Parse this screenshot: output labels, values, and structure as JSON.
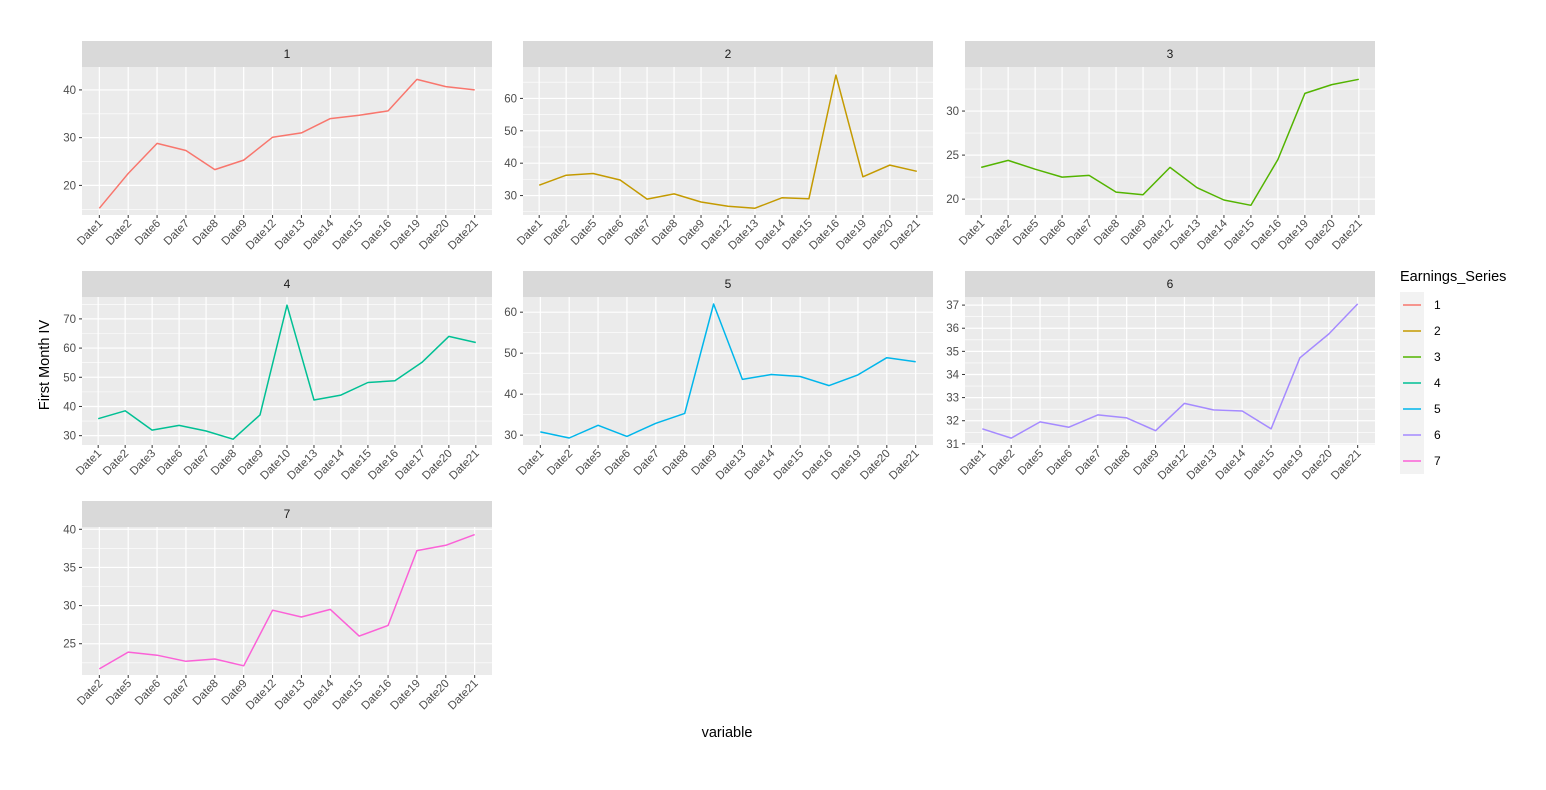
{
  "colors": {
    "panel_background": "#ebebeb",
    "strip_background": "#d9d9d9",
    "grid_line": "#ffffff",
    "tick_text": "#4d4d4d",
    "series": {
      "1": "#F8766D",
      "2": "#C49A00",
      "3": "#53B400",
      "4": "#00C094",
      "5": "#00B6EB",
      "6": "#A58AFF",
      "7": "#FB61D7"
    }
  },
  "chart_data": {
    "type": "line",
    "xlabel": "variable",
    "ylabel": "First Month IV",
    "legend": {
      "title": "Earnings_Series",
      "placement": "right",
      "entries": [
        "1",
        "2",
        "3",
        "4",
        "5",
        "6",
        "7"
      ]
    },
    "grid": true,
    "panels": [
      {
        "strip": "1",
        "series": "1",
        "x": [
          "Date1",
          "Date2",
          "Date6",
          "Date7",
          "Date8",
          "Date9",
          "Date12",
          "Date13",
          "Date14",
          "Date15",
          "Date16",
          "Date19",
          "Date20",
          "Date21"
        ],
        "y": [
          15.2,
          22.5,
          28.8,
          27.3,
          23.3,
          25.3,
          30.1,
          31.0,
          34.0,
          34.7,
          35.6,
          42.2,
          40.7,
          40.0
        ],
        "ylim": [
          13.8,
          44.8
        ],
        "yticks": [
          20,
          30,
          40
        ]
      },
      {
        "strip": "2",
        "series": "2",
        "x": [
          "Date1",
          "Date2",
          "Date5",
          "Date6",
          "Date7",
          "Date8",
          "Date9",
          "Date12",
          "Date13",
          "Date14",
          "Date15",
          "Date16",
          "Date19",
          "Date20",
          "Date21"
        ],
        "y": [
          33.2,
          36.3,
          36.8,
          34.8,
          28.9,
          30.5,
          28.0,
          26.7,
          26.1,
          29.3,
          29.0,
          67.2,
          35.8,
          39.4,
          37.5
        ],
        "ylim": [
          24.0,
          69.7
        ],
        "yticks": [
          30,
          40,
          50,
          60
        ]
      },
      {
        "strip": "3",
        "series": "3",
        "x": [
          "Date1",
          "Date2",
          "Date5",
          "Date6",
          "Date7",
          "Date8",
          "Date9",
          "Date12",
          "Date13",
          "Date14",
          "Date15",
          "Date16",
          "Date19",
          "Date20",
          "Date21"
        ],
        "y": [
          23.6,
          24.4,
          23.4,
          22.5,
          22.7,
          20.8,
          20.5,
          23.6,
          21.3,
          19.9,
          19.3,
          24.5,
          32.0,
          33.0,
          33.6
        ],
        "ylim": [
          18.2,
          35.0
        ],
        "yticks": [
          20,
          25,
          30
        ]
      },
      {
        "strip": "4",
        "series": "4",
        "x": [
          "Date1",
          "Date2",
          "Date3",
          "Date6",
          "Date7",
          "Date8",
          "Date9",
          "Date10",
          "Date13",
          "Date14",
          "Date15",
          "Date16",
          "Date17",
          "Date20",
          "Date21"
        ],
        "y": [
          35.8,
          38.5,
          31.9,
          33.5,
          31.6,
          28.8,
          37.1,
          74.7,
          42.2,
          43.9,
          48.2,
          48.8,
          55.1,
          64.0,
          61.9
        ],
        "ylim": [
          26.8,
          77.5
        ],
        "yticks": [
          30,
          40,
          50,
          60,
          70
        ]
      },
      {
        "strip": "5",
        "series": "5",
        "x": [
          "Date1",
          "Date2",
          "Date5",
          "Date6",
          "Date7",
          "Date8",
          "Date9",
          "Date13",
          "Date14",
          "Date15",
          "Date16",
          "Date19",
          "Date20",
          "Date21"
        ],
        "y": [
          30.8,
          29.3,
          32.4,
          29.7,
          32.9,
          35.3,
          62.0,
          43.6,
          44.8,
          44.3,
          42.1,
          44.7,
          48.9,
          47.9
        ],
        "ylim": [
          27.6,
          63.7
        ],
        "yticks": [
          30,
          40,
          50,
          60
        ]
      },
      {
        "strip": "6",
        "series": "6",
        "x": [
          "Date1",
          "Date2",
          "Date5",
          "Date6",
          "Date7",
          "Date8",
          "Date9",
          "Date12",
          "Date13",
          "Date14",
          "Date15",
          "Date19",
          "Date20",
          "Date21"
        ],
        "y": [
          31.65,
          31.25,
          31.95,
          31.72,
          32.25,
          32.12,
          31.57,
          32.75,
          32.47,
          32.42,
          31.65,
          34.72,
          35.75,
          37.05
        ],
        "ylim": [
          30.95,
          37.35
        ],
        "yticks": [
          31,
          32,
          33,
          34,
          35,
          36,
          37
        ]
      },
      {
        "strip": "7",
        "series": "7",
        "x": [
          "Date2",
          "Date5",
          "Date6",
          "Date7",
          "Date8",
          "Date9",
          "Date12",
          "Date13",
          "Date14",
          "Date15",
          "Date16",
          "Date19",
          "Date20",
          "Date21"
        ],
        "y": [
          21.7,
          23.9,
          23.5,
          22.7,
          23.0,
          22.1,
          29.4,
          28.5,
          29.5,
          26.0,
          27.4,
          37.2,
          37.9,
          39.3
        ],
        "ylim": [
          20.9,
          40.3
        ],
        "yticks": [
          25,
          30,
          35,
          40
        ]
      }
    ]
  }
}
